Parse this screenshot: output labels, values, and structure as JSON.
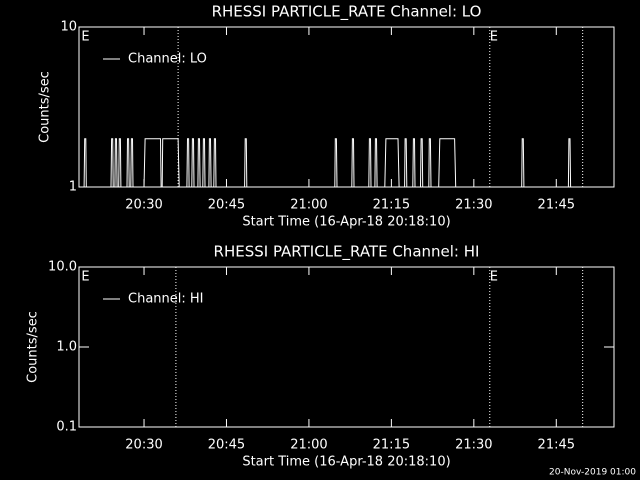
{
  "chart_data": [
    {
      "type": "line",
      "title": "RHESSI PARTICLE_RATE Channel: LO",
      "x_label": "Start Time (16-Apr-18 20:18:10)",
      "y_label": "Counts/sec",
      "log_y": true,
      "xlim": [
        1218.17,
        1315.5
      ],
      "ylim": [
        1,
        10
      ],
      "xticks": [
        {
          "value": 1230,
          "label": "20:30"
        },
        {
          "value": 1245,
          "label": "20:45"
        },
        {
          "value": 1260,
          "label": "21:00"
        },
        {
          "value": 1275,
          "label": "21:15"
        },
        {
          "value": 1290,
          "label": "21:30"
        },
        {
          "value": 1305,
          "label": "21:45"
        }
      ],
      "yticks": [
        1,
        10
      ],
      "vlines": [
        1236.2,
        1292.9,
        1309.8
      ],
      "annotations": [
        {
          "text": "E",
          "x": 1218.6
        },
        {
          "text": "E",
          "x": 1292.9
        }
      ],
      "series": [
        {
          "name": "Channel: LO",
          "color": "#ffffff",
          "x": [
            1218.2,
            1219.1,
            1219.2,
            1219.4,
            1219.5,
            1224.0,
            1224.1,
            1224.3,
            1224.4,
            1224.7,
            1224.8,
            1225.0,
            1225.1,
            1225.4,
            1225.5,
            1225.7,
            1225.8,
            1226.9,
            1227.0,
            1227.2,
            1227.3,
            1227.6,
            1227.7,
            1227.9,
            1228.0,
            1230.0,
            1230.2,
            1233.0,
            1233.1,
            1233.3,
            1233.4,
            1236.2,
            1236.4,
            1237.8,
            1237.9,
            1238.1,
            1238.2,
            1238.7,
            1238.8,
            1239.0,
            1239.1,
            1239.8,
            1239.9,
            1240.1,
            1240.2,
            1240.7,
            1240.8,
            1241.0,
            1241.1,
            1241.8,
            1241.9,
            1242.1,
            1242.2,
            1242.7,
            1242.8,
            1243.0,
            1243.1,
            1248.3,
            1248.4,
            1248.6,
            1248.7,
            1264.7,
            1264.8,
            1265.0,
            1265.1,
            1267.8,
            1267.9,
            1268.1,
            1268.2,
            1270.9,
            1271.0,
            1271.2,
            1271.3,
            1272.0,
            1272.1,
            1272.3,
            1272.4,
            1273.8,
            1274.0,
            1276.2,
            1276.4,
            1277.4,
            1277.5,
            1277.7,
            1277.8,
            1278.9,
            1279.0,
            1279.2,
            1279.3,
            1280.3,
            1280.4,
            1280.6,
            1280.7,
            1281.8,
            1281.9,
            1282.1,
            1282.2,
            1283.6,
            1283.8,
            1286.5,
            1286.7,
            1298.7,
            1298.8,
            1299.0,
            1299.1,
            1307.2,
            1307.3,
            1307.5,
            1307.6,
            1315.5
          ],
          "values": [
            1,
            1,
            2,
            2,
            1,
            1,
            2,
            2,
            1,
            1,
            2,
            2,
            1,
            1,
            2,
            2,
            1,
            1,
            2,
            2,
            1,
            1,
            2,
            2,
            1,
            1,
            2,
            2,
            1,
            1,
            2,
            2,
            1,
            1,
            2,
            2,
            1,
            1,
            2,
            2,
            1,
            1,
            2,
            2,
            1,
            1,
            2,
            2,
            1,
            1,
            2,
            2,
            1,
            1,
            2,
            2,
            1,
            1,
            2,
            2,
            1,
            1,
            2,
            2,
            1,
            1,
            2,
            2,
            1,
            1,
            2,
            2,
            1,
            1,
            2,
            2,
            1,
            1,
            2,
            2,
            1,
            1,
            2,
            2,
            1,
            1,
            2,
            2,
            1,
            1,
            2,
            2,
            1,
            1,
            2,
            2,
            1,
            1,
            2,
            2,
            1,
            1,
            2,
            2,
            1,
            1,
            2,
            2,
            1,
            1
          ]
        }
      ]
    },
    {
      "type": "line",
      "title": "RHESSI PARTICLE_RATE Channel: HI",
      "x_label": "Start Time (16-Apr-18 20:18:10)",
      "y_label": "Counts/sec",
      "log_y": true,
      "xlim": [
        1218.17,
        1315.5
      ],
      "ylim": [
        0.1,
        10
      ],
      "xticks": [
        {
          "value": 1230,
          "label": "20:30"
        },
        {
          "value": 1245,
          "label": "20:45"
        },
        {
          "value": 1260,
          "label": "21:00"
        },
        {
          "value": 1275,
          "label": "21:15"
        },
        {
          "value": 1290,
          "label": "21:30"
        },
        {
          "value": 1305,
          "label": "21:45"
        }
      ],
      "yticks": [
        0.1,
        {
          "value": 1,
          "label": "1.0"
        },
        {
          "value": 10,
          "label": "10.0"
        }
      ],
      "vlines": [
        1235.8,
        1292.9,
        1309.8
      ],
      "annotations": [
        {
          "text": "E",
          "x": 1218.6
        },
        {
          "text": "E",
          "x": 1292.9
        }
      ],
      "series": [
        {
          "name": "Channel: HI",
          "color": "#ffffff",
          "x": [],
          "values": []
        }
      ]
    }
  ],
  "footer": "20-Nov-2019 01:00"
}
